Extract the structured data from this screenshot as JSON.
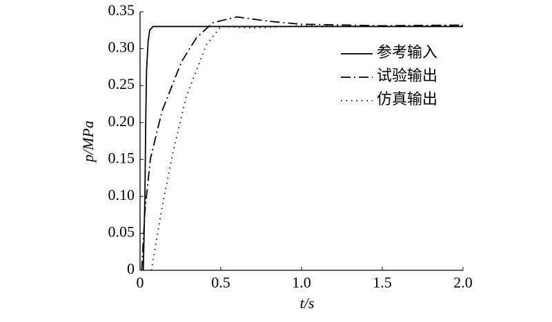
{
  "chart_data": {
    "type": "line",
    "xlabel": "t/s",
    "ylabel": "p/MPa",
    "xlim": [
      0,
      2
    ],
    "xticks": [
      0,
      0.5,
      {
        "value": 1,
        "label": "1.0"
      },
      1.5,
      {
        "value": 2,
        "label": "2.0"
      }
    ],
    "ylim": [
      0,
      0.35
    ],
    "yticks": [
      0,
      0.05,
      {
        "value": 0.1,
        "label": "0.10"
      },
      0.15,
      {
        "value": 0.2,
        "label": "0.20"
      },
      0.25,
      {
        "value": 0.3,
        "label": "0.30"
      },
      0.35
    ],
    "legend": "upper right",
    "series": [
      {
        "name": "参考输入",
        "color": "#000000",
        "style": "solid",
        "x": [
          0.02,
          0.03,
          0.035,
          0.04,
          0.05,
          0.06,
          0.08,
          2.0
        ],
        "values": [
          0,
          0.1,
          0.2,
          0.27,
          0.31,
          0.325,
          0.33,
          0.33
        ]
      },
      {
        "name": "试验输出",
        "color": "#000000",
        "style": "dashdot",
        "x": [
          0.01,
          0.03,
          0.064,
          0.137,
          0.256,
          0.35,
          0.45,
          0.6,
          0.8,
          1.0,
          1.5,
          2.0
        ],
        "values": [
          0,
          0.08,
          0.151,
          0.216,
          0.282,
          0.315,
          0.335,
          0.343,
          0.337,
          0.333,
          0.331,
          0.332
        ]
      },
      {
        "name": "仿真输出",
        "color": "#000000",
        "style": "dotted",
        "x": [
          0.07,
          0.137,
          0.2,
          0.286,
          0.41,
          0.5,
          0.7,
          1.0,
          1.5,
          2.0
        ],
        "values": [
          0,
          0.086,
          0.156,
          0.235,
          0.305,
          0.33,
          0.328,
          0.331,
          0.33,
          0.331
        ]
      }
    ]
  }
}
